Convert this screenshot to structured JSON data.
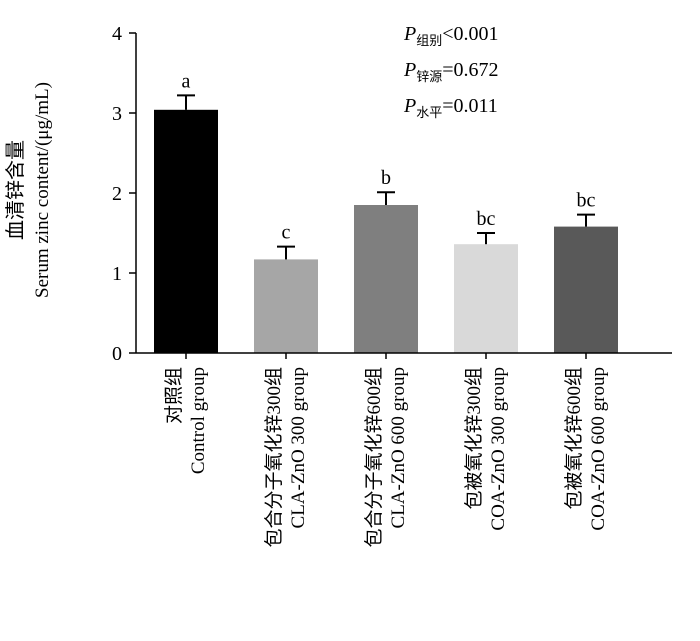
{
  "chart_data": {
    "type": "bar",
    "ylabel_cn": "血清锌含量",
    "ylabel_en": "Serum zinc content/(μg/mL)",
    "ylim": [
      0,
      4
    ],
    "yticks": [
      "0",
      "1",
      "2",
      "3",
      "4"
    ],
    "categories": [
      {
        "cn": "对照组",
        "en": "Control group"
      },
      {
        "cn": "包合分子氧化锌300组",
        "en": "CLA-ZnO 300 group"
      },
      {
        "cn": "包合分子氧化锌600组",
        "en": "CLA-ZnO 600 group"
      },
      {
        "cn": "包被氧化锌300组",
        "en": "COA-ZnO 300 group"
      },
      {
        "cn": "包被氧化锌600组",
        "en": "COA-ZnO 600 group"
      }
    ],
    "values": [
      3.04,
      1.17,
      1.85,
      1.36,
      1.58
    ],
    "errors": [
      0.18,
      0.16,
      0.16,
      0.14,
      0.15
    ],
    "letters": [
      "a",
      "c",
      "b",
      "bc",
      "bc"
    ],
    "colors": [
      "#000000",
      "#a6a6a6",
      "#7f7f7f",
      "#d9d9d9",
      "#595959"
    ],
    "stats": [
      {
        "sub": "组别",
        "rest": "<0.001"
      },
      {
        "sub": "锌源",
        "rest": "=0.672"
      },
      {
        "sub": "水平",
        "rest": "=0.011"
      }
    ],
    "stat_symbol": "P"
  }
}
